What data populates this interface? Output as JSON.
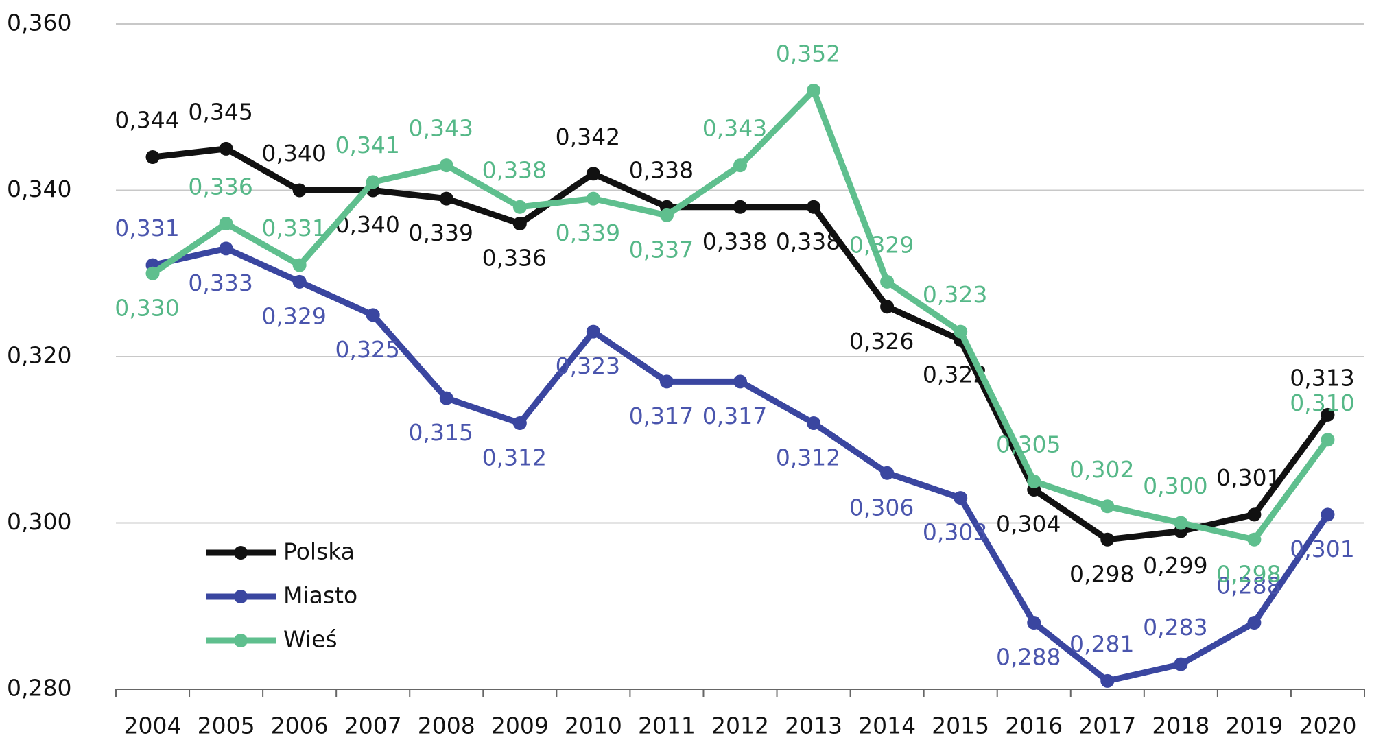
{
  "chart_data": {
    "type": "line",
    "categories": [
      "2004",
      "2005",
      "2006",
      "2007",
      "2008",
      "2009",
      "2010",
      "2011",
      "2012",
      "2013",
      "2014",
      "2015",
      "2016",
      "2017",
      "2018",
      "2019",
      "2020"
    ],
    "series": [
      {
        "name": "Polska",
        "color": "#111111",
        "values": [
          0.344,
          0.345,
          0.34,
          0.34,
          0.339,
          0.336,
          0.342,
          0.338,
          0.338,
          0.338,
          0.326,
          0.322,
          0.304,
          0.298,
          0.299,
          0.301,
          0.313
        ],
        "value_labels": [
          "0,344",
          "0,345",
          "0,340",
          "0,340",
          "0,339",
          "0,336",
          "0,342",
          "0,338",
          "0,338",
          "0,338",
          "0,326",
          "0,322",
          "0,304",
          "0,298",
          "0,299",
          "0,301",
          "0,313"
        ]
      },
      {
        "name": "Miasto",
        "color": "#3a46a0",
        "values": [
          0.331,
          0.333,
          0.329,
          0.325,
          0.315,
          0.312,
          0.323,
          0.317,
          0.317,
          0.312,
          0.306,
          0.303,
          0.288,
          0.281,
          0.283,
          0.288,
          0.301
        ],
        "value_labels": [
          "0,331",
          "0,333",
          "0,329",
          "0,325",
          "0,315",
          "0,312",
          "0,323",
          "0,317",
          "0,317",
          "0,312",
          "0,306",
          "0,303",
          "0,288",
          "0,281",
          "0,283",
          "0,288",
          "0,301"
        ]
      },
      {
        "name": "Wieś",
        "color": "#5fbf8e",
        "values": [
          0.33,
          0.336,
          0.331,
          0.341,
          0.343,
          0.338,
          0.339,
          0.337,
          0.343,
          0.352,
          0.329,
          0.323,
          0.305,
          0.302,
          0.3,
          0.298,
          0.31
        ],
        "value_labels": [
          "0,330",
          "0,336",
          "0,331",
          "0,341",
          "0,343",
          "0,338",
          "0,339",
          "0,337",
          "0,343",
          "0,352",
          "0,329",
          "0,323",
          "0,305",
          "0,302",
          "0,300",
          "0,298",
          "0,310"
        ]
      }
    ],
    "ylim": [
      0.28,
      0.36
    ],
    "yticks": [
      {
        "value": 0.28,
        "label": "0,280"
      },
      {
        "value": 0.3,
        "label": "0,300"
      },
      {
        "value": 0.32,
        "label": "0,320"
      },
      {
        "value": 0.34,
        "label": "0,340"
      },
      {
        "value": 0.36,
        "label": "0,360"
      }
    ],
    "grid": true,
    "legend": "lower left"
  }
}
